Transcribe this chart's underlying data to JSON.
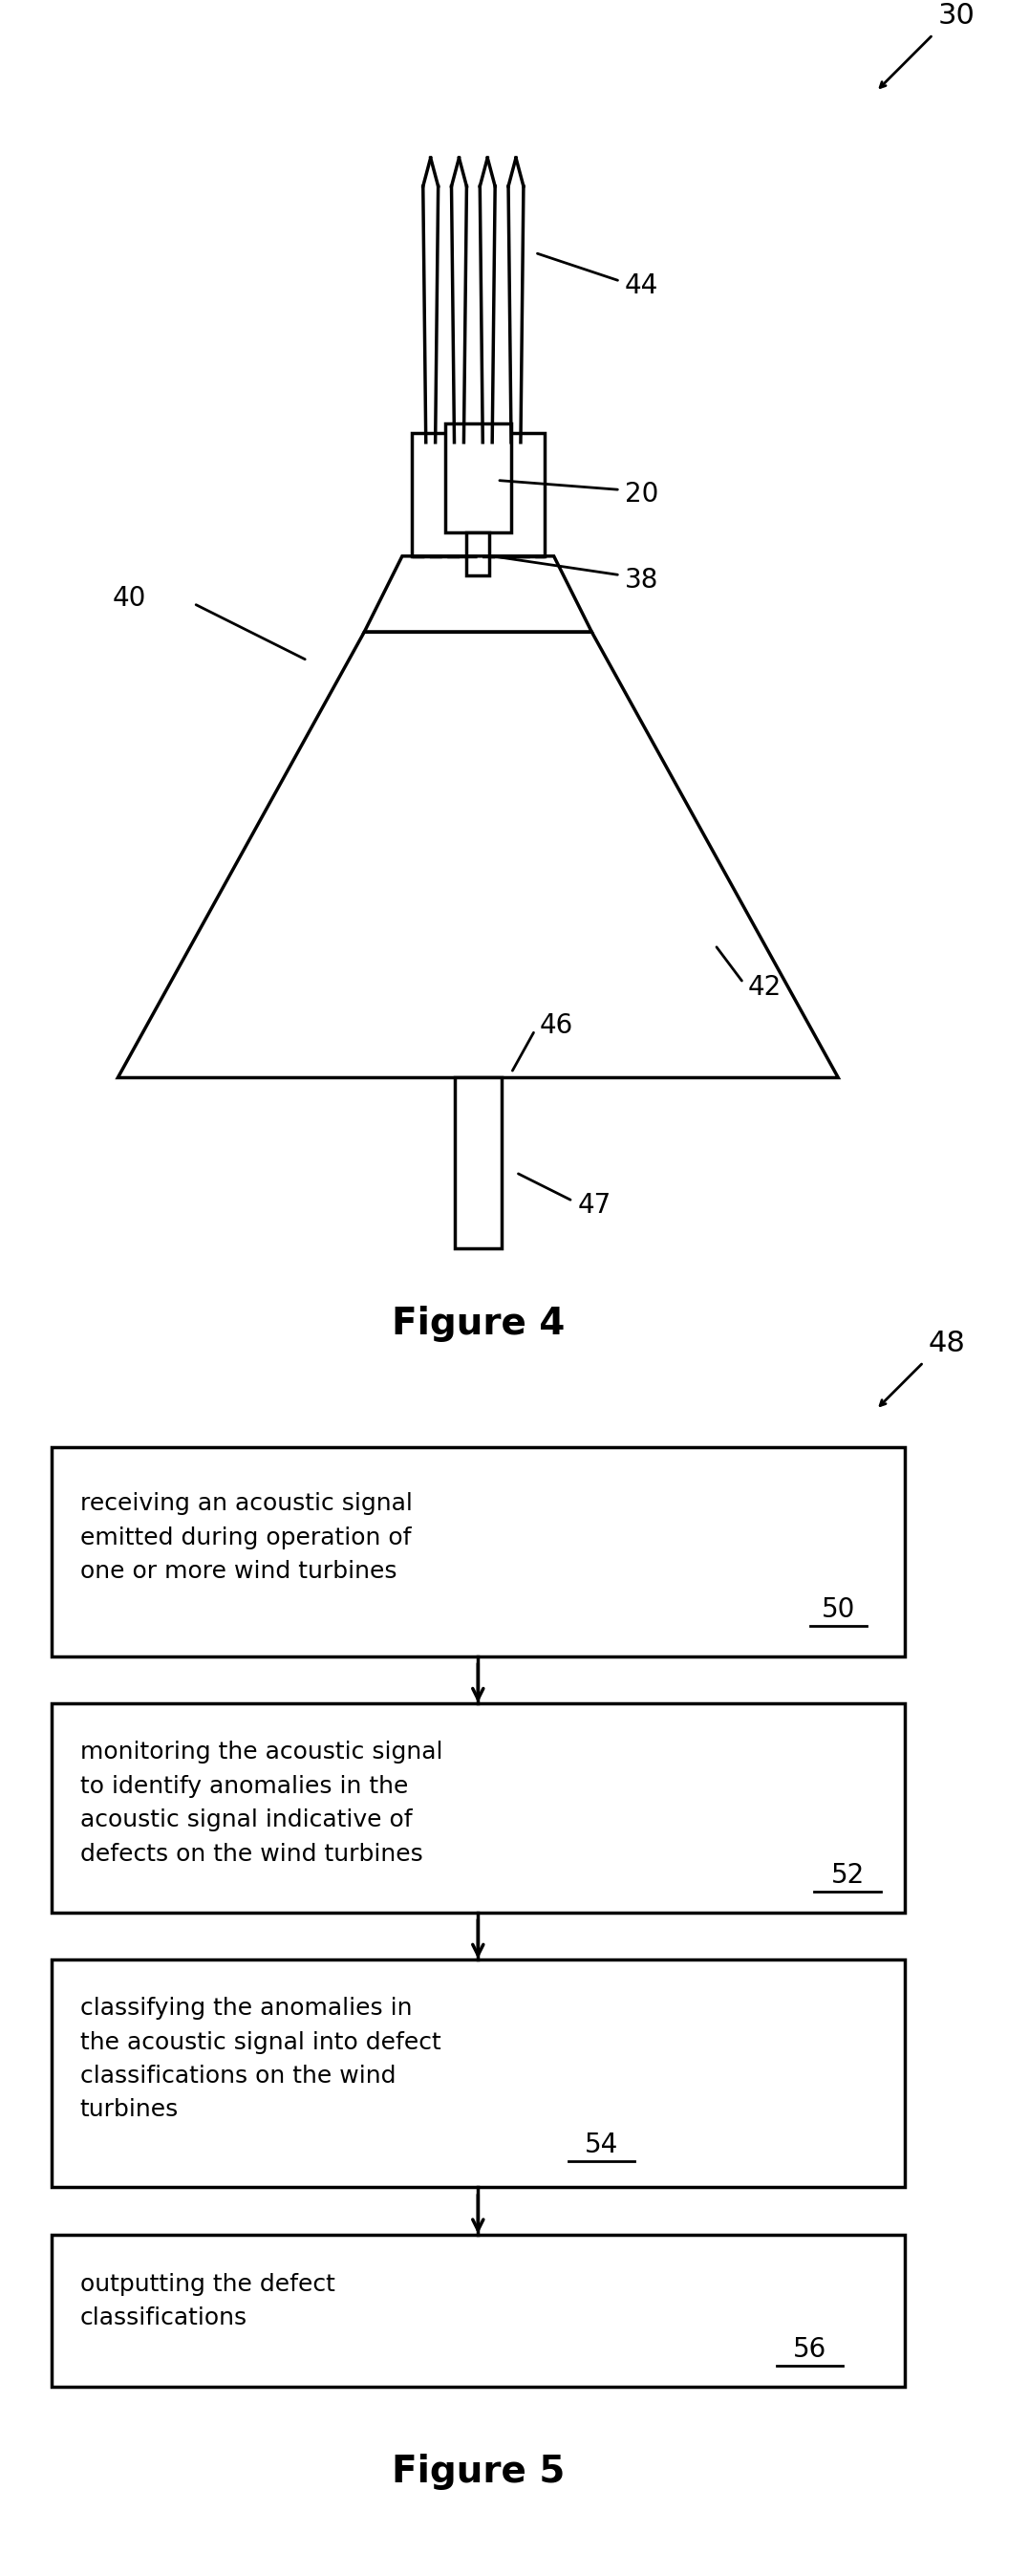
{
  "fig4_label": "Figure 4",
  "fig5_label": "Figure 5",
  "ref_30": "30",
  "ref_48": "48",
  "ref_40": "40",
  "ref_42": "42",
  "ref_44": "44",
  "ref_20": "20",
  "ref_38": "38",
  "ref_46": "46",
  "ref_47": "47",
  "ref_50": "50",
  "ref_52": "52",
  "ref_54": "54",
  "ref_56": "56",
  "box1_text": "receiving an acoustic signal\nemitted during operation of\none or more wind turbines",
  "box2_text": "monitoring the acoustic signal\nto identify anomalies in the\nacoustic signal indicative of\ndefects on the wind turbines",
  "box3_text": "classifying the anomalies in\nthe acoustic signal into defect\nclassifications on the wind\nturbines",
  "box4_text": "outputting the defect\nclassifications",
  "bg_color": "#ffffff",
  "line_color": "#000000",
  "text_color": "#000000"
}
